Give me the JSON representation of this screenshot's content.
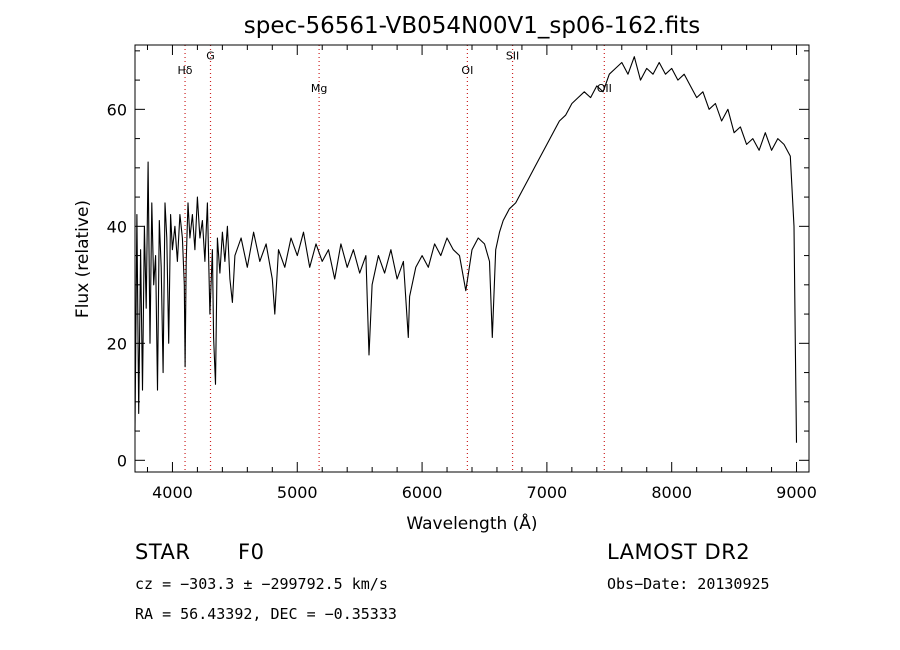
{
  "chart_data": {
    "type": "line",
    "title": "spec-56561-VB054N00V1_sp06-162.fits",
    "xlabel": "Wavelength (Å)",
    "ylabel": "Flux (relative)",
    "xlim": [
      3700,
      9100
    ],
    "ylim": [
      -2,
      71
    ],
    "x_ticks": [
      4000,
      5000,
      6000,
      7000,
      8000,
      9000
    ],
    "y_ticks": [
      0,
      20,
      40,
      60
    ],
    "grid": false,
    "series": [
      {
        "color": "#000000",
        "points": [
          [
            3700,
            5
          ],
          [
            3715,
            42
          ],
          [
            3730,
            8
          ],
          [
            3745,
            36
          ],
          [
            3760,
            12
          ],
          [
            3775,
            40
          ],
          [
            3790,
            26
          ],
          [
            3805,
            51
          ],
          [
            3820,
            20
          ],
          [
            3835,
            44
          ],
          [
            3850,
            30
          ],
          [
            3865,
            35
          ],
          [
            3880,
            12
          ],
          [
            3895,
            41
          ],
          [
            3910,
            33
          ],
          [
            3925,
            15
          ],
          [
            3940,
            44
          ],
          [
            3955,
            38
          ],
          [
            3970,
            20
          ],
          [
            3985,
            42
          ],
          [
            4000,
            36
          ],
          [
            4020,
            40
          ],
          [
            4040,
            34
          ],
          [
            4060,
            42
          ],
          [
            4080,
            38
          ],
          [
            4095,
            30
          ],
          [
            4101,
            16
          ],
          [
            4110,
            34
          ],
          [
            4125,
            44
          ],
          [
            4140,
            38
          ],
          [
            4160,
            42
          ],
          [
            4180,
            36
          ],
          [
            4200,
            45
          ],
          [
            4220,
            38
          ],
          [
            4240,
            41
          ],
          [
            4260,
            34
          ],
          [
            4280,
            44
          ],
          [
            4300,
            25
          ],
          [
            4320,
            36
          ],
          [
            4330,
            21
          ],
          [
            4345,
            13
          ],
          [
            4360,
            38
          ],
          [
            4380,
            32
          ],
          [
            4400,
            39
          ],
          [
            4420,
            34
          ],
          [
            4440,
            40
          ],
          [
            4460,
            31
          ],
          [
            4480,
            27
          ],
          [
            4500,
            35
          ],
          [
            4550,
            38
          ],
          [
            4600,
            33
          ],
          [
            4650,
            39
          ],
          [
            4700,
            34
          ],
          [
            4750,
            37
          ],
          [
            4800,
            31
          ],
          [
            4820,
            25
          ],
          [
            4850,
            36
          ],
          [
            4900,
            33
          ],
          [
            4950,
            38
          ],
          [
            5000,
            35
          ],
          [
            5050,
            39
          ],
          [
            5100,
            33
          ],
          [
            5150,
            37
          ],
          [
            5200,
            34
          ],
          [
            5250,
            36
          ],
          [
            5300,
            31
          ],
          [
            5350,
            37
          ],
          [
            5400,
            33
          ],
          [
            5450,
            36
          ],
          [
            5500,
            32
          ],
          [
            5550,
            35
          ],
          [
            5575,
            18
          ],
          [
            5600,
            30
          ],
          [
            5650,
            35
          ],
          [
            5700,
            32
          ],
          [
            5750,
            36
          ],
          [
            5800,
            31
          ],
          [
            5850,
            34
          ],
          [
            5890,
            21
          ],
          [
            5900,
            28
          ],
          [
            5950,
            33
          ],
          [
            6000,
            35
          ],
          [
            6050,
            33
          ],
          [
            6100,
            37
          ],
          [
            6150,
            35
          ],
          [
            6200,
            38
          ],
          [
            6250,
            36
          ],
          [
            6300,
            35
          ],
          [
            6350,
            29
          ],
          [
            6400,
            36
          ],
          [
            6450,
            38
          ],
          [
            6500,
            37
          ],
          [
            6540,
            34
          ],
          [
            6563,
            21
          ],
          [
            6590,
            36
          ],
          [
            6620,
            39
          ],
          [
            6650,
            41
          ],
          [
            6700,
            43
          ],
          [
            6750,
            44
          ],
          [
            6800,
            46
          ],
          [
            6850,
            48
          ],
          [
            6900,
            50
          ],
          [
            6950,
            52
          ],
          [
            7000,
            54
          ],
          [
            7050,
            56
          ],
          [
            7100,
            58
          ],
          [
            7150,
            59
          ],
          [
            7200,
            61
          ],
          [
            7250,
            62
          ],
          [
            7300,
            63
          ],
          [
            7350,
            62
          ],
          [
            7400,
            64
          ],
          [
            7450,
            63
          ],
          [
            7500,
            66
          ],
          [
            7550,
            67
          ],
          [
            7600,
            68
          ],
          [
            7650,
            66
          ],
          [
            7700,
            69
          ],
          [
            7750,
            65
          ],
          [
            7800,
            67
          ],
          [
            7850,
            66
          ],
          [
            7900,
            68
          ],
          [
            7950,
            66
          ],
          [
            8000,
            67
          ],
          [
            8050,
            65
          ],
          [
            8100,
            66
          ],
          [
            8150,
            64
          ],
          [
            8200,
            62
          ],
          [
            8250,
            63
          ],
          [
            8300,
            60
          ],
          [
            8350,
            61
          ],
          [
            8400,
            58
          ],
          [
            8450,
            60
          ],
          [
            8500,
            56
          ],
          [
            8550,
            57
          ],
          [
            8600,
            54
          ],
          [
            8650,
            55
          ],
          [
            8700,
            53
          ],
          [
            8750,
            56
          ],
          [
            8800,
            53
          ],
          [
            8850,
            55
          ],
          [
            8900,
            54
          ],
          [
            8950,
            52
          ],
          [
            8980,
            40
          ],
          [
            8990,
            20
          ],
          [
            9000,
            3
          ]
        ]
      }
    ],
    "lines": [
      {
        "label": "Hδ",
        "x": 4101,
        "label_y": 66
      },
      {
        "label": "G",
        "x": 4305,
        "label_y": 68.5
      },
      {
        "label": "Mg",
        "x": 5175,
        "label_y": 63
      },
      {
        "label": "OI",
        "x": 6363,
        "label_y": 66
      },
      {
        "label": "SII",
        "x": 6725,
        "label_y": 68.5
      },
      {
        "label": "OII",
        "x": 7460,
        "label_y": 63
      }
    ],
    "line_color": "#cc2222"
  },
  "info": {
    "class_label": "STAR",
    "subclass": "F0",
    "survey": "LAMOST DR2",
    "cz": "cz = −303.3 ± −299792.5 km/s",
    "obs_date": "Obs−Date: 20130925",
    "coords": "RA =  56.43392, DEC =  −0.35333"
  }
}
